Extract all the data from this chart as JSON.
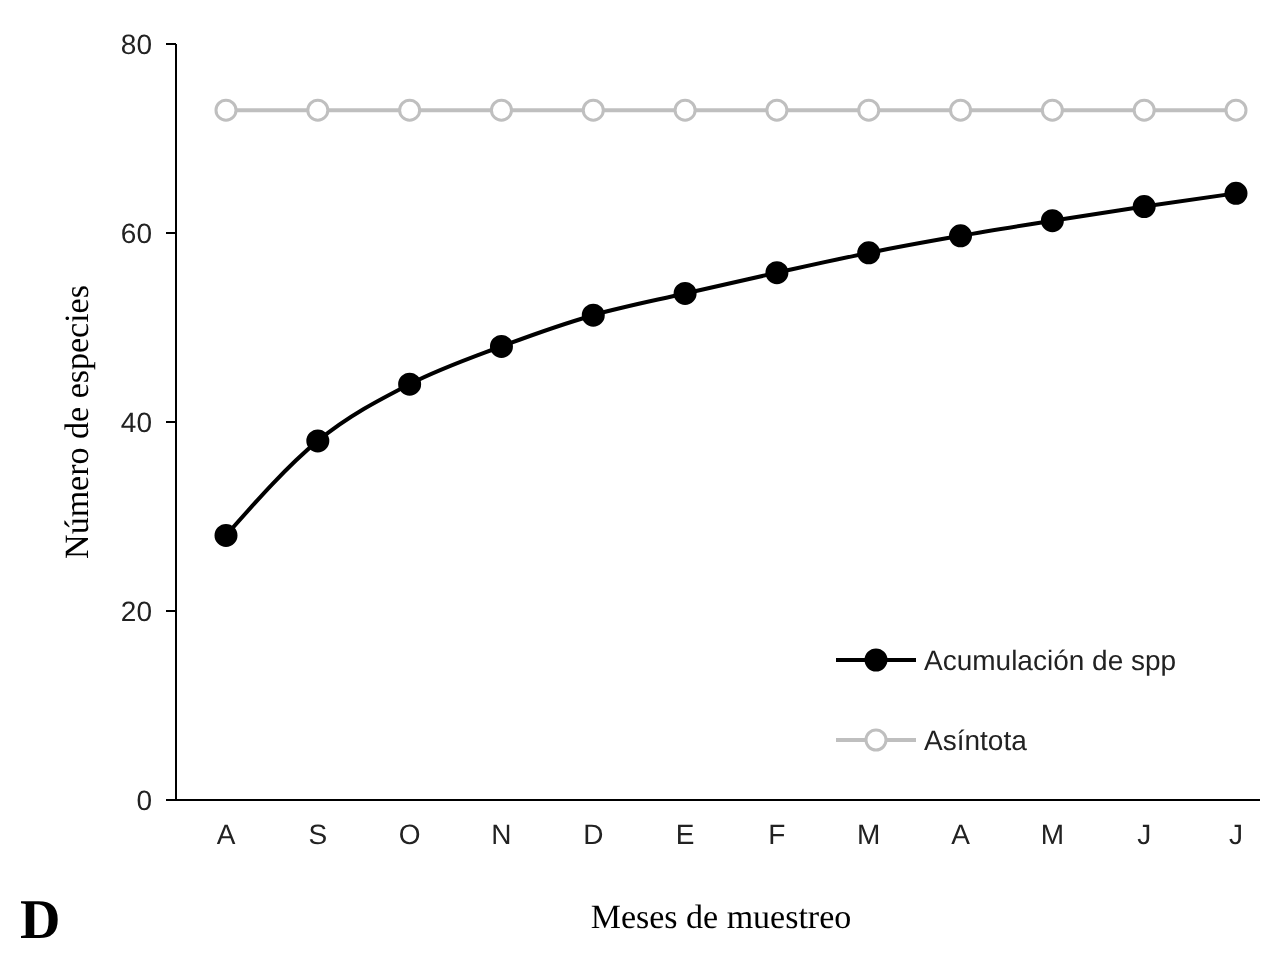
{
  "chart_data": {
    "type": "line",
    "xlabel": "Meses de muestreo",
    "ylabel": "Número de especies",
    "categories": [
      "A",
      "S",
      "O",
      "N",
      "D",
      "E",
      "F",
      "M",
      "A",
      "M",
      "J",
      "J"
    ],
    "series": [
      {
        "name": "Acumulación de spp",
        "color": "#000000",
        "marker": "circle",
        "values": [
          28,
          38,
          44,
          48,
          51.3,
          53.6,
          55.8,
          57.9,
          59.7,
          61.3,
          62.8,
          64.2
        ]
      },
      {
        "name": "Asíntota",
        "color": "#bfbfbf",
        "marker": "circle",
        "values": [
          73,
          73,
          73,
          73,
          73,
          73,
          73,
          73,
          73,
          73,
          73,
          73
        ]
      }
    ],
    "ylim": [
      0,
      80
    ],
    "yticks": [
      0,
      20,
      40,
      60,
      80
    ],
    "grid": false,
    "legend": "bottom right",
    "annotations": [
      "D"
    ]
  }
}
